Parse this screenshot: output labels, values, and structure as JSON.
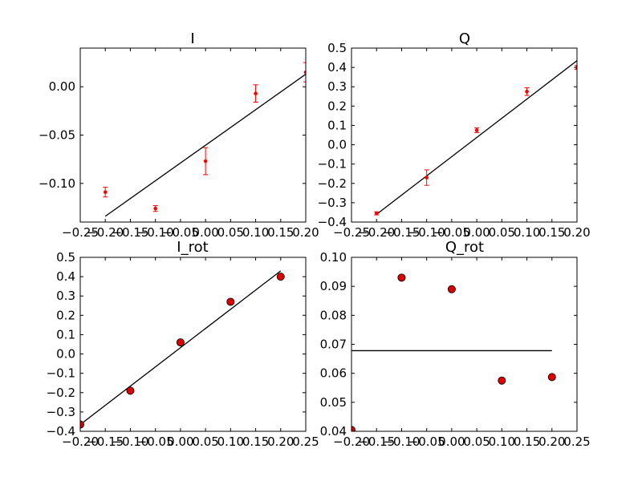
{
  "chart_data": [
    {
      "type": "scatter",
      "title": "I",
      "xlim": [
        -0.25,
        0.2
      ],
      "ylim": [
        -0.14,
        0.04
      ],
      "xticks": [
        "−0.25",
        "−0.20",
        "−0.15",
        "−0.10",
        "−0.05",
        "0.00",
        "0.05",
        "0.10",
        "0.15",
        "0.20"
      ],
      "yticks": [
        "−0.10",
        "−0.05",
        "0.00"
      ],
      "x": [
        -0.2,
        -0.1,
        0.0,
        0.1,
        0.2
      ],
      "y": [
        -0.109,
        -0.126,
        -0.077,
        -0.007,
        0.015
      ],
      "yerr": [
        0.005,
        0.003,
        0.014,
        0.009,
        0.01
      ],
      "fit_line": {
        "x": [
          -0.2,
          0.2
        ],
        "y": [
          -0.134,
          0.013
        ]
      },
      "marker": "small-red-dot-with-errorbar",
      "colors": {
        "points": "#ff0000",
        "line": "#000000"
      }
    },
    {
      "type": "scatter",
      "title": "Q",
      "xlim": [
        -0.25,
        0.2
      ],
      "ylim": [
        -0.4,
        0.5
      ],
      "xticks": [
        "−0.25",
        "−0.20",
        "−0.15",
        "−0.10",
        "−0.05",
        "0.00",
        "0.05",
        "0.10",
        "0.15",
        "0.20"
      ],
      "yticks": [
        "−0.4",
        "−0.3",
        "−0.2",
        "−0.1",
        "0.0",
        "0.1",
        "0.2",
        "0.3",
        "0.4",
        "0.5"
      ],
      "x": [
        -0.2,
        -0.1,
        0.0,
        0.1,
        0.2
      ],
      "y": [
        -0.355,
        -0.17,
        0.075,
        0.275,
        0.4
      ],
      "yerr": [
        0.008,
        0.04,
        0.012,
        0.02,
        0.01
      ],
      "fit_line": {
        "x": [
          -0.2,
          0.2
        ],
        "y": [
          -0.36,
          0.435
        ]
      },
      "marker": "small-red-dot-with-errorbar",
      "colors": {
        "points": "#ff0000",
        "line": "#000000"
      }
    },
    {
      "type": "scatter",
      "title": "I_rot",
      "xlim": [
        -0.2,
        0.25
      ],
      "ylim": [
        -0.4,
        0.5
      ],
      "xticks": [
        "−0.20",
        "−0.15",
        "−0.10",
        "−0.05",
        "0.00",
        "0.05",
        "0.10",
        "0.15",
        "0.20",
        "0.25"
      ],
      "yticks": [
        "−0.4",
        "−0.3",
        "−0.2",
        "−0.1",
        "0.0",
        "0.1",
        "0.2",
        "0.3",
        "0.4",
        "0.5"
      ],
      "x": [
        -0.2,
        -0.1,
        0.0,
        0.1,
        0.2
      ],
      "y": [
        -0.365,
        -0.19,
        0.06,
        0.27,
        0.4
      ],
      "fit_line": {
        "x": [
          -0.2,
          0.2
        ],
        "y": [
          -0.365,
          0.43
        ]
      },
      "marker": "large-red-circle",
      "colors": {
        "points": "#dd0000",
        "line": "#000000"
      }
    },
    {
      "type": "scatter",
      "title": "Q_rot",
      "xlim": [
        -0.2,
        0.25
      ],
      "ylim": [
        0.04,
        0.1
      ],
      "xticks": [
        "−0.20",
        "−0.15",
        "−0.10",
        "−0.05",
        "0.00",
        "0.05",
        "0.10",
        "0.15",
        "0.20",
        "0.25"
      ],
      "yticks": [
        "0.04",
        "0.05",
        "0.06",
        "0.07",
        "0.08",
        "0.09",
        "0.10"
      ],
      "x": [
        -0.2,
        -0.1,
        0.0,
        0.1,
        0.2
      ],
      "y": [
        0.0405,
        0.093,
        0.089,
        0.0575,
        0.0587
      ],
      "fit_line": {
        "x": [
          -0.2,
          0.2
        ],
        "y": [
          0.0678,
          0.0678
        ]
      },
      "marker": "large-red-circle",
      "colors": {
        "points": "#dd0000",
        "line": "#000000"
      }
    }
  ]
}
